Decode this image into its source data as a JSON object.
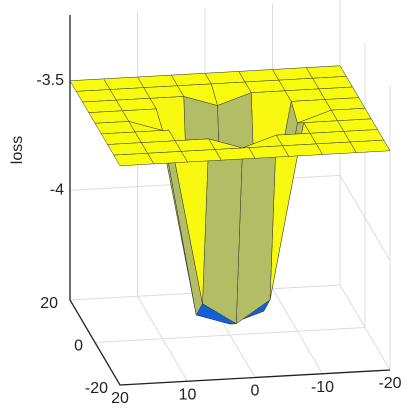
{
  "chart_data": {
    "type": "surface",
    "zlabel": "loss",
    "x": [
      -20,
      -15,
      -10,
      -5,
      0,
      5,
      10,
      15,
      20
    ],
    "y": [
      -20,
      -15,
      -10,
      -5,
      0,
      5,
      10,
      15,
      20
    ],
    "z": [
      [
        -3.5,
        -3.5,
        -3.5,
        -3.5,
        -3.5,
        -3.5,
        -3.5,
        -3.5,
        -3.5
      ],
      [
        -3.5,
        -3.5,
        -3.5,
        -3.5,
        -3.5,
        -3.5,
        -3.5,
        -3.5,
        -3.5
      ],
      [
        -3.5,
        -3.5,
        -3.5,
        -3.5,
        -3.55,
        -3.5,
        -3.5,
        -3.5,
        -3.5
      ],
      [
        -3.5,
        -3.5,
        -3.5,
        -4.3,
        -4.4,
        -4.3,
        -3.5,
        -3.5,
        -3.5
      ],
      [
        -3.5,
        -3.5,
        -3.55,
        -4.4,
        -4.45,
        -4.4,
        -3.55,
        -3.5,
        -3.5
      ],
      [
        -3.5,
        -3.5,
        -3.5,
        -4.3,
        -4.4,
        -4.3,
        -3.5,
        -3.5,
        -3.5
      ],
      [
        -3.5,
        -3.5,
        -3.5,
        -3.5,
        -3.55,
        -3.5,
        -3.5,
        -3.5,
        -3.5
      ],
      [
        -3.5,
        -3.5,
        -3.5,
        -3.5,
        -3.5,
        -3.5,
        -3.5,
        -3.5,
        -3.5
      ],
      [
        -3.5,
        -3.5,
        -3.5,
        -3.5,
        -3.5,
        -3.5,
        -3.5,
        -3.5,
        -3.5
      ]
    ],
    "xlim": [
      -20,
      20
    ],
    "xticks": [
      -20,
      -10,
      0,
      10,
      20
    ],
    "ylim": [
      -20,
      20
    ],
    "yticks": [
      -20,
      0,
      20
    ],
    "zlim": [
      -4.5,
      -3.2
    ],
    "zticks": [
      -4,
      -3.5
    ],
    "grid": true,
    "colormap": [
      "#352a87",
      "#0f5cdd",
      "#1481d6",
      "#06a4ca",
      "#2eb7a4",
      "#87bf77",
      "#d1bb59",
      "#fec832",
      "#f9fb0e"
    ]
  }
}
